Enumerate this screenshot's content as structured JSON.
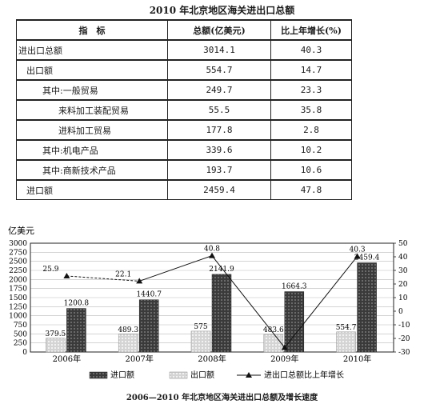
{
  "table": {
    "title": "2010 年北京地区海关进出口总额",
    "headers": [
      "指　标",
      "总额(亿美元)",
      "比上年增长(%)"
    ],
    "rows": [
      {
        "label": "进出口总额",
        "indent": 0,
        "total": "3014.1",
        "growth": "40.3"
      },
      {
        "label": "出口额",
        "indent": 1,
        "total": "554.7",
        "growth": "14.7"
      },
      {
        "label": "其中:一般贸易",
        "indent": 2,
        "total": "249.7",
        "growth": "23.3"
      },
      {
        "label": "来料加工装配贸易",
        "indent": 3,
        "total": "55.5",
        "growth": "35.8"
      },
      {
        "label": "进料加工贸易",
        "indent": 3,
        "total": "177.8",
        "growth": "2.8"
      },
      {
        "label": "其中:机电产品",
        "indent": 2,
        "total": "339.6",
        "growth": "10.2"
      },
      {
        "label": "其中:商新技术产品",
        "indent": 2,
        "total": "193.7",
        "growth": "10.6"
      },
      {
        "label": "进口额",
        "indent": 1,
        "total": "2459.4",
        "growth": "47.8"
      }
    ]
  },
  "chart_data": {
    "type": "bar",
    "title": "2006—2010 年北京地区海关进出口总额及增长速度",
    "ylabel": "亿美元",
    "categories": [
      "2006年",
      "2007年",
      "2008年",
      "2009年",
      "2010年"
    ],
    "ylim": [
      0,
      3000
    ],
    "yticks": [
      0,
      250,
      500,
      750,
      1000,
      1250,
      1500,
      1750,
      2000,
      2250,
      2500,
      2750,
      3000
    ],
    "y2lim": [
      -30,
      50
    ],
    "y2ticks": [
      -30,
      -20,
      -10,
      0,
      10,
      20,
      30,
      40,
      50
    ],
    "series": [
      {
        "name": "进口额",
        "type": "bar",
        "values": [
          1200.8,
          1440.7,
          2141.9,
          1664.3,
          2459.4
        ],
        "labels": [
          "1200.8",
          "1440.7",
          "2141.9",
          "1664.3",
          "2459.4"
        ],
        "color": "#3a3a3a"
      },
      {
        "name": "出口额",
        "type": "bar",
        "values": [
          379.5,
          489.3,
          575,
          483.6,
          554.7
        ],
        "labels": [
          "379.5",
          "489.3",
          "575",
          "483.6",
          "554.7"
        ],
        "color": "#c8c8c8"
      },
      {
        "name": "进出口总额比上年增长",
        "type": "line",
        "axis": "right",
        "values": [
          25.9,
          22.1,
          40.8,
          -26.7,
          40.3
        ],
        "labels": [
          "25.9",
          "22.1",
          "40.8",
          "",
          "40.3"
        ],
        "color": "#111111"
      }
    ],
    "legend_position": "bottom"
  }
}
